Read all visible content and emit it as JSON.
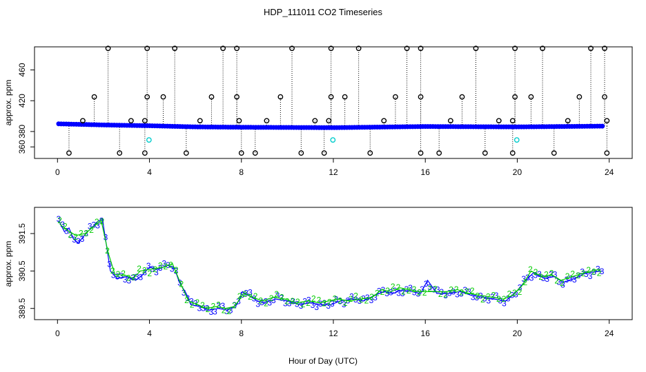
{
  "figure": {
    "title": "HDP_111011  CO2 Timeseries",
    "xlabel": "Hour of Day (UTC)"
  },
  "colors": {
    "axis": "#000000",
    "primary_series": "#0000ff",
    "secondary_series": "#00cc00",
    "flag": "#00cccc"
  },
  "chart_data": [
    {
      "type": "scatter",
      "ylabel": "approx. ppm",
      "xlim": [
        -1,
        25
      ],
      "ylim": [
        345,
        490
      ],
      "xticks": [
        0,
        4,
        8,
        12,
        16,
        20,
        24
      ],
      "yticks": [
        360,
        380,
        420,
        460
      ],
      "baseline": [
        [
          0,
          390
        ],
        [
          2,
          388.5
        ],
        [
          4,
          387.5
        ],
        [
          6,
          386
        ],
        [
          8,
          385.5
        ],
        [
          12,
          385
        ],
        [
          16,
          386.5
        ],
        [
          19.8,
          386
        ],
        [
          20,
          386
        ],
        [
          23.8,
          387
        ]
      ],
      "spike_high": [
        2.2,
        3.9,
        5.1,
        7.2,
        7.8,
        10.2,
        11.9,
        13.1,
        15.2,
        15.8,
        18.2,
        19.9,
        21.1,
        23.2,
        23.8
      ],
      "spike_mid": [
        1.6,
        3.9,
        4.6,
        6.7,
        7.8,
        9.7,
        11.9,
        12.5,
        14.7,
        15.8,
        17.6,
        19.9,
        20.6,
        22.7,
        23.8
      ],
      "spike_low": [
        1.1,
        3.2,
        3.8,
        6.2,
        7.9,
        9.1,
        11.2,
        11.8,
        14.2,
        17.1,
        19.2,
        19.8,
        22.2,
        23.9
      ],
      "spike_bottom": [
        0.5,
        2.7,
        3.8,
        5.6,
        8.0,
        8.6,
        10.6,
        11.6,
        13.6,
        15.8,
        16.6,
        18.6,
        19.8,
        21.6,
        23.9
      ],
      "flagged_points": [
        [
          3.98,
          369
        ],
        [
          11.98,
          369
        ],
        [
          19.98,
          369
        ]
      ],
      "values": {
        "high": 488,
        "mid": 425,
        "low": 394,
        "bottom": 352
      }
    },
    {
      "type": "line",
      "ylabel": "approx. ppm",
      "xlim": [
        -1,
        25
      ],
      "ylim": [
        389.2,
        392.2
      ],
      "xticks": [
        0,
        4,
        8,
        12,
        16,
        20,
        24
      ],
      "yticks": [
        389.5,
        390.5,
        391.5
      ],
      "series": [
        {
          "name": "3",
          "points": [
            [
              0.05,
              391.85
            ],
            [
              0.3,
              391.55
            ],
            [
              0.5,
              391.65
            ],
            [
              0.7,
              391.35
            ],
            [
              0.9,
              391.25
            ],
            [
              1.1,
              391.4
            ],
            [
              1.3,
              391.55
            ],
            [
              1.5,
              391.65
            ],
            [
              1.7,
              391.8
            ],
            [
              1.95,
              391.9
            ],
            [
              2.1,
              391.3
            ],
            [
              2.3,
              390.5
            ],
            [
              2.6,
              390.3
            ],
            [
              3.0,
              390.35
            ],
            [
              3.4,
              390.25
            ],
            [
              3.7,
              390.4
            ],
            [
              4.0,
              390.6
            ],
            [
              4.4,
              390.55
            ],
            [
              4.8,
              390.65
            ],
            [
              5.1,
              390.55
            ],
            [
              5.3,
              390.2
            ],
            [
              5.6,
              389.9
            ],
            [
              5.8,
              389.6
            ],
            [
              6.2,
              389.55
            ],
            [
              6.6,
              389.45
            ],
            [
              7.0,
              389.5
            ],
            [
              7.4,
              389.45
            ],
            [
              7.8,
              389.6
            ],
            [
              8.05,
              389.95
            ],
            [
              8.3,
              389.85
            ],
            [
              8.7,
              389.7
            ],
            [
              9.0,
              389.65
            ],
            [
              9.5,
              389.75
            ],
            [
              10.0,
              389.7
            ],
            [
              10.5,
              389.6
            ],
            [
              11.0,
              389.65
            ],
            [
              11.5,
              389.6
            ],
            [
              11.9,
              389.6
            ],
            [
              12.3,
              389.7
            ],
            [
              12.8,
              389.75
            ],
            [
              13.3,
              389.7
            ],
            [
              13.8,
              389.85
            ],
            [
              14.2,
              389.95
            ],
            [
              14.6,
              389.9
            ],
            [
              15.0,
              390.0
            ],
            [
              15.4,
              389.95
            ],
            [
              15.8,
              389.9
            ],
            [
              16.1,
              390.25
            ],
            [
              16.5,
              389.9
            ],
            [
              17.0,
              389.9
            ],
            [
              17.5,
              389.95
            ],
            [
              18.0,
              389.85
            ],
            [
              18.5,
              389.8
            ],
            [
              19.0,
              389.75
            ],
            [
              19.5,
              389.7
            ],
            [
              19.9,
              389.9
            ],
            [
              20.3,
              390.2
            ],
            [
              20.7,
              390.45
            ],
            [
              21.2,
              390.3
            ],
            [
              21.6,
              390.35
            ],
            [
              22.0,
              390.2
            ],
            [
              22.5,
              390.3
            ],
            [
              23.0,
              390.45
            ],
            [
              23.7,
              390.5
            ]
          ]
        },
        {
          "name": "2",
          "points": [
            [
              0.1,
              391.75
            ],
            [
              0.4,
              391.6
            ],
            [
              0.8,
              391.45
            ],
            [
              1.2,
              391.5
            ],
            [
              1.6,
              391.7
            ],
            [
              1.9,
              391.85
            ],
            [
              2.2,
              391.0
            ],
            [
              2.5,
              390.4
            ],
            [
              2.9,
              390.4
            ],
            [
              3.3,
              390.3
            ],
            [
              3.6,
              390.5
            ],
            [
              4.1,
              390.55
            ],
            [
              4.6,
              390.6
            ],
            [
              5.0,
              390.7
            ],
            [
              5.4,
              390.1
            ],
            [
              5.7,
              389.7
            ],
            [
              6.1,
              389.6
            ],
            [
              6.5,
              389.5
            ],
            [
              6.9,
              389.55
            ],
            [
              7.3,
              389.5
            ],
            [
              7.7,
              389.55
            ],
            [
              8.1,
              389.9
            ],
            [
              8.5,
              389.8
            ],
            [
              8.9,
              389.7
            ],
            [
              9.4,
              389.8
            ],
            [
              9.9,
              389.75
            ],
            [
              10.4,
              389.65
            ],
            [
              10.9,
              389.7
            ],
            [
              11.4,
              389.65
            ],
            [
              12.2,
              389.75
            ],
            [
              12.7,
              389.7
            ],
            [
              13.2,
              389.75
            ],
            [
              13.7,
              389.8
            ],
            [
              14.1,
              390.0
            ],
            [
              14.5,
              389.95
            ],
            [
              14.9,
              390.05
            ],
            [
              15.3,
              390.0
            ],
            [
              15.7,
              389.95
            ],
            [
              16.4,
              389.95
            ],
            [
              16.9,
              389.95
            ],
            [
              17.4,
              390.0
            ],
            [
              17.9,
              389.9
            ],
            [
              18.4,
              389.85
            ],
            [
              18.9,
              389.8
            ],
            [
              19.4,
              389.75
            ],
            [
              19.8,
              389.85
            ],
            [
              20.2,
              390.1
            ],
            [
              20.6,
              390.5
            ],
            [
              21.1,
              390.35
            ],
            [
              21.5,
              390.4
            ],
            [
              21.9,
              390.25
            ],
            [
              22.4,
              390.35
            ],
            [
              22.9,
              390.45
            ],
            [
              23.6,
              390.55
            ]
          ]
        }
      ]
    }
  ]
}
